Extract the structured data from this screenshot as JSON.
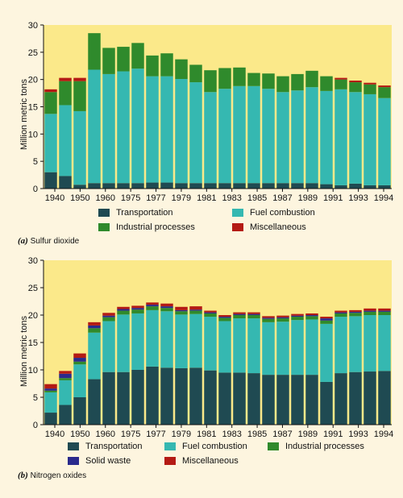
{
  "colors": {
    "background": "#fdf5df",
    "plot_background": "#fbe98a",
    "transportation": "#1f4a52",
    "fuel_combustion": "#35b8b1",
    "industrial_processes": "#2f8a2c",
    "solid_waste": "#2a2a8c",
    "miscellaneous": "#b41a14"
  },
  "chart_data": [
    {
      "type": "bar",
      "stacked": true,
      "caption_letter": "(a)",
      "caption_text": "Sulfur dioxide",
      "ylabel": "Million metric tons",
      "ylim": [
        0,
        30
      ],
      "yticks": [
        0,
        5,
        10,
        15,
        20,
        25,
        30
      ],
      "x_tick_labels": [
        "1940",
        "1950",
        "1960",
        "1975",
        "1977",
        "1979",
        "1981",
        "1983",
        "1985",
        "1987",
        "1989",
        "1991",
        "1993",
        "1994"
      ],
      "categories": [
        "1940",
        "1950",
        "1960",
        "1970",
        "1975",
        "1976",
        "1977",
        "1978",
        "1979",
        "1980",
        "1981",
        "1982",
        "1983",
        "1984",
        "1985",
        "1986",
        "1987",
        "1988",
        "1989",
        "1990",
        "1991",
        "1992",
        "1993",
        "1994"
      ],
      "series": [
        {
          "name": "Transportation",
          "color_key": "transportation",
          "values": [
            3.0,
            2.3,
            0.7,
            1.0,
            1.0,
            1.0,
            1.0,
            1.1,
            1.1,
            1.0,
            1.0,
            1.0,
            1.0,
            1.0,
            1.0,
            1.0,
            1.0,
            1.0,
            1.0,
            0.8,
            0.6,
            0.9,
            0.6,
            0.6
          ]
        },
        {
          "name": "Fuel combustion",
          "color_key": "fuel_combustion",
          "values": [
            10.7,
            13.0,
            13.5,
            20.8,
            20.0,
            20.5,
            21.0,
            19.5,
            19.5,
            19.1,
            18.5,
            16.7,
            17.3,
            17.8,
            17.8,
            17.3,
            16.7,
            17.0,
            17.6,
            17.1,
            17.6,
            16.8,
            16.7,
            16.0
          ]
        },
        {
          "name": "Industrial processes",
          "color_key": "industrial_processes",
          "values": [
            4.0,
            4.4,
            5.5,
            6.7,
            4.8,
            4.5,
            4.7,
            3.8,
            4.2,
            3.6,
            3.2,
            4.0,
            3.8,
            3.4,
            2.4,
            2.8,
            2.9,
            3.0,
            3.0,
            2.7,
            1.8,
            1.8,
            1.8,
            2.0
          ]
        },
        {
          "name": "Miscellaneous",
          "color_key": "miscellaneous",
          "values": [
            0.5,
            0.6,
            0.6,
            0,
            0,
            0,
            0,
            0,
            0,
            0,
            0,
            0,
            0,
            0,
            0,
            0,
            0,
            0,
            0,
            0,
            0.3,
            0.3,
            0.3,
            0.3
          ]
        }
      ],
      "legend": [
        {
          "label": "Transportation",
          "color_key": "transportation"
        },
        {
          "label": "Fuel combustion",
          "color_key": "fuel_combustion"
        },
        {
          "label": "Industrial processes",
          "color_key": "industrial_processes"
        },
        {
          "label": "Miscellaneous",
          "color_key": "miscellaneous"
        }
      ]
    },
    {
      "type": "bar",
      "stacked": true,
      "caption_letter": "(b)",
      "caption_text": "Nitrogen oxides",
      "ylabel": "Million metric tons",
      "ylim": [
        0,
        30
      ],
      "yticks": [
        0,
        5,
        10,
        15,
        20,
        25,
        30
      ],
      "x_tick_labels": [
        "1940",
        "1950",
        "1960",
        "1975",
        "1977",
        "1979",
        "1981",
        "1983",
        "1985",
        "1987",
        "1989",
        "1991",
        "1993",
        "1994"
      ],
      "categories": [
        "1940",
        "1950",
        "1960",
        "1970",
        "1975",
        "1976",
        "1977",
        "1978",
        "1979",
        "1980",
        "1981",
        "1982",
        "1983",
        "1984",
        "1985",
        "1986",
        "1987",
        "1988",
        "1989",
        "1990",
        "1991",
        "1992",
        "1993",
        "1994"
      ],
      "series": [
        {
          "name": "Transportation",
          "color_key": "transportation",
          "values": [
            2.2,
            3.6,
            5.0,
            8.3,
            9.6,
            9.6,
            10.0,
            10.6,
            10.4,
            10.3,
            10.4,
            9.9,
            9.5,
            9.5,
            9.4,
            9.1,
            9.1,
            9.1,
            9.1,
            7.8,
            9.4,
            9.6,
            9.7,
            9.8
          ]
        },
        {
          "name": "Fuel combustion",
          "color_key": "fuel_combustion",
          "values": [
            3.7,
            4.5,
            6.0,
            8.5,
            9.3,
            10.5,
            10.3,
            10.3,
            10.3,
            9.8,
            9.8,
            9.8,
            9.4,
            9.9,
            10.0,
            9.6,
            9.7,
            10.0,
            10.1,
            10.6,
            10.3,
            10.2,
            10.3,
            10.2
          ]
        },
        {
          "name": "Industrial processes",
          "color_key": "industrial_processes",
          "values": [
            0.3,
            0.4,
            0.5,
            0.8,
            0.7,
            0.7,
            0.7,
            0.7,
            0.6,
            0.6,
            0.6,
            0.6,
            0.6,
            0.6,
            0.6,
            0.6,
            0.6,
            0.6,
            0.6,
            0.6,
            0.6,
            0.6,
            0.6,
            0.6
          ]
        },
        {
          "name": "Solid waste",
          "color_key": "solid_waste",
          "values": [
            0.4,
            0.8,
            0.7,
            0.5,
            0.3,
            0.3,
            0.3,
            0.3,
            0.3,
            0.2,
            0.2,
            0.2,
            0.2,
            0.2,
            0.2,
            0.2,
            0.2,
            0.2,
            0.2,
            0.4,
            0.2,
            0.2,
            0.2,
            0.2
          ]
        },
        {
          "name": "Miscellaneous",
          "color_key": "miscellaneous",
          "values": [
            0.8,
            0.5,
            0.8,
            0.6,
            0.5,
            0.4,
            0.4,
            0.4,
            0.5,
            0.6,
            0.6,
            0.3,
            0.3,
            0.3,
            0.3,
            0.3,
            0.3,
            0.3,
            0.3,
            0.3,
            0.3,
            0.3,
            0.4,
            0.4
          ]
        }
      ],
      "legend": [
        {
          "label": "Transportation",
          "color_key": "transportation"
        },
        {
          "label": "Fuel combustion",
          "color_key": "fuel_combustion"
        },
        {
          "label": "Industrial processes",
          "color_key": "industrial_processes"
        },
        {
          "label": "Solid waste",
          "color_key": "solid_waste"
        },
        {
          "label": "Miscellaneous",
          "color_key": "miscellaneous"
        }
      ]
    }
  ]
}
